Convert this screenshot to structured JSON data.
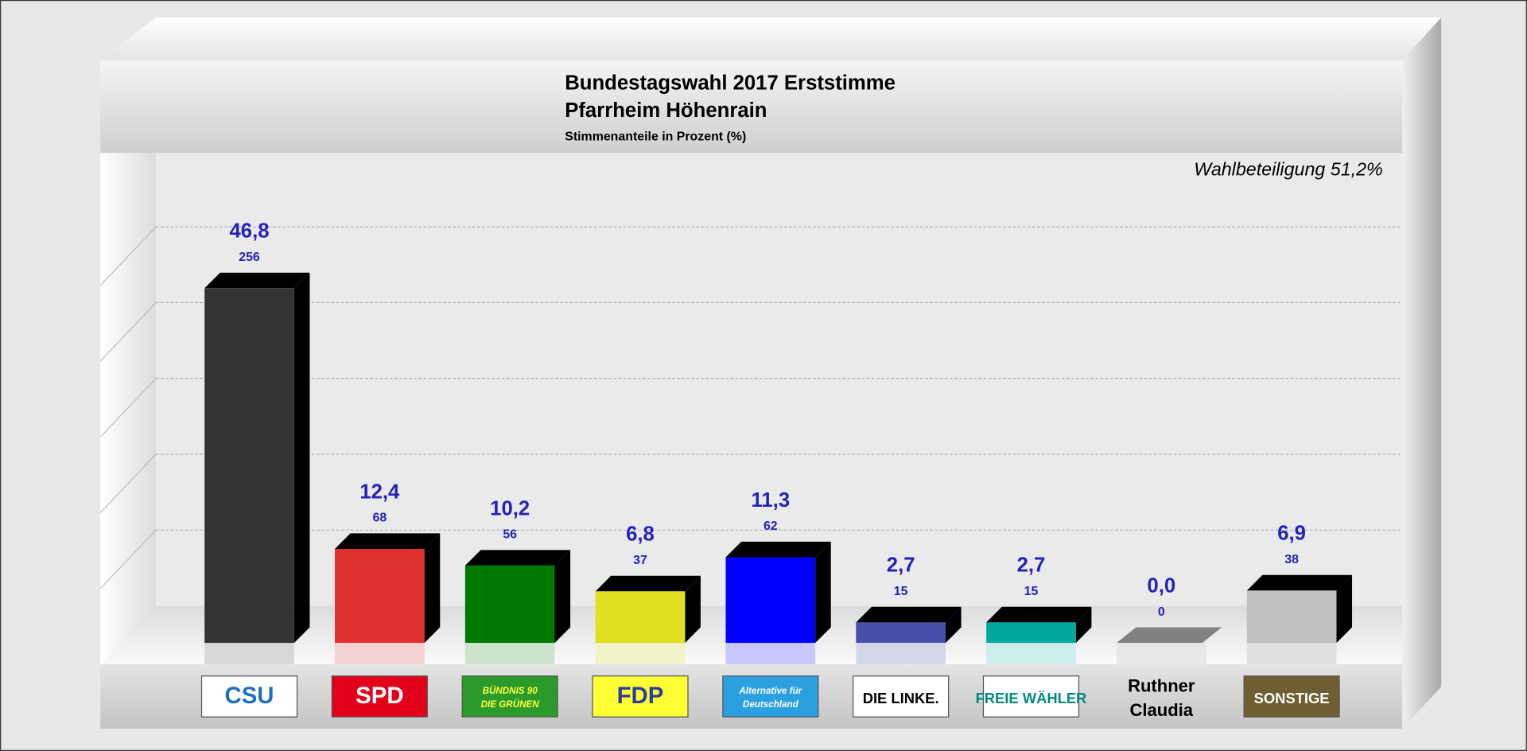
{
  "chart_data": {
    "type": "bar",
    "title": "Bundestagswahl 2017 Erststimme",
    "subtitle": "Pfarrheim Höhenrain",
    "subtitle2": "Stimmenanteile in Prozent (%)",
    "annotation": "Wahlbeteiligung 51,2%",
    "ylim": [
      0,
      55
    ],
    "grid": true,
    "gridlines": [
      10,
      20,
      30,
      40,
      50
    ],
    "categories": [
      "CSU",
      "SPD",
      "BÜNDNIS 90 DIE GRÜNEN",
      "FDP",
      "Alternative für Deutschland",
      "DIE LINKE.",
      "FREIE WÄHLER",
      "Ruthner Claudia",
      "SONSTIGE"
    ],
    "values": [
      46.8,
      12.4,
      10.2,
      6.8,
      11.3,
      2.7,
      2.7,
      0.0,
      6.9
    ],
    "value_labels": [
      "46,8",
      "12,4",
      "10,2",
      "6,8",
      "11,3",
      "2,7",
      "2,7",
      "0,0",
      "6,9"
    ],
    "votes": [
      256,
      68,
      56,
      37,
      62,
      15,
      15,
      0,
      38
    ],
    "colors": [
      "#333333",
      "#e03030",
      "#007800",
      "#e0e020",
      "#0000ff",
      "#4650a8",
      "#00a8a0",
      "#808080",
      "#c0c0c0"
    ],
    "reflection_colors": [
      "#d8d8d8",
      "#f4d0d0",
      "#cce4cc",
      "#f2f2c8",
      "#c8c8ff",
      "#d4d6ea",
      "#cceeec",
      "#e8e8e8",
      "#e0e0e0"
    ],
    "label_color": "#2222bb",
    "logos": [
      {
        "text": "CSU",
        "bg": "#ffffff",
        "fg": "#1e6fc0"
      },
      {
        "text": "SPD",
        "bg": "#e3001b",
        "fg": "#ffffff"
      },
      {
        "text": "BÜNDNIS 90 DIE GRÜNEN",
        "bg": "#2a9a2a",
        "fg": "#ffff40"
      },
      {
        "text": "FDP",
        "bg": "#ffff33",
        "fg": "#2b3e9e"
      },
      {
        "text": "Alternative für Deutschland",
        "bg": "#2aa0e0",
        "fg": "#ffffff"
      },
      {
        "text": "DIE LINKE.",
        "bg": "#ffffff",
        "fg": "#000000"
      },
      {
        "text": "FREIE WÄHLER",
        "bg": "#ffffff",
        "fg": "#008a80"
      },
      {
        "text": "Ruthner Claudia",
        "bg": "none",
        "fg": "#000000"
      },
      {
        "text": "SONSTIGE",
        "bg": "#6e5e32",
        "fg": "#ffffff"
      }
    ]
  }
}
